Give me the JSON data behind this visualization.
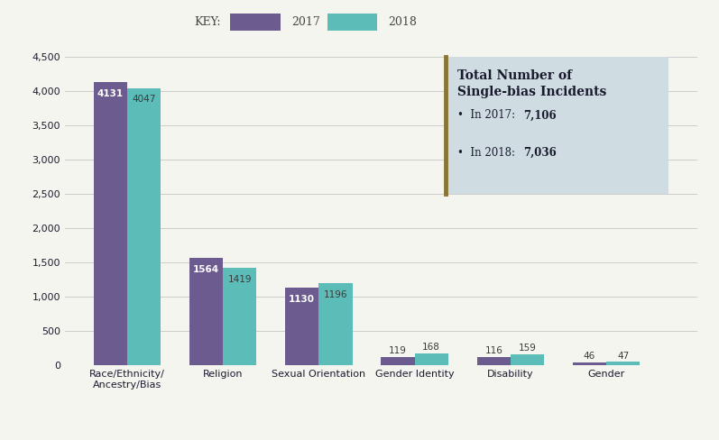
{
  "categories": [
    "Race/Ethnicity/\nAncestry/Bias",
    "Religion",
    "Sexual Orientation",
    "Gender Identity",
    "Disability",
    "Gender"
  ],
  "values_2017": [
    4131,
    1564,
    1130,
    119,
    116,
    46
  ],
  "values_2018": [
    4047,
    1419,
    1196,
    168,
    159,
    47
  ],
  "color_2017": "#6b5b8e",
  "color_2018": "#5bbcb8",
  "ylim": [
    0,
    4500
  ],
  "yticks": [
    0,
    500,
    1000,
    1500,
    2000,
    2500,
    3000,
    3500,
    4000,
    4500
  ],
  "title_box": "Total Number of\nSingle-bias Incidents",
  "bullet1": "In 2017: ",
  "bullet1_bold": "7,106",
  "bullet2": "In 2018: ",
  "bullet2_bold": "7,036",
  "key_label": "KEY:",
  "legend_2017": "2017",
  "legend_2018": "2018",
  "bar_width": 0.35,
  "background_color": "#f5f5f0",
  "grid_color": "#cccccc",
  "box_bg_color": "#cfdde3",
  "box_border_color": "#8b7536",
  "text_color": "#1a1a2e",
  "annotation_white": "#ffffff",
  "annotation_dark": "#3a3a3a"
}
